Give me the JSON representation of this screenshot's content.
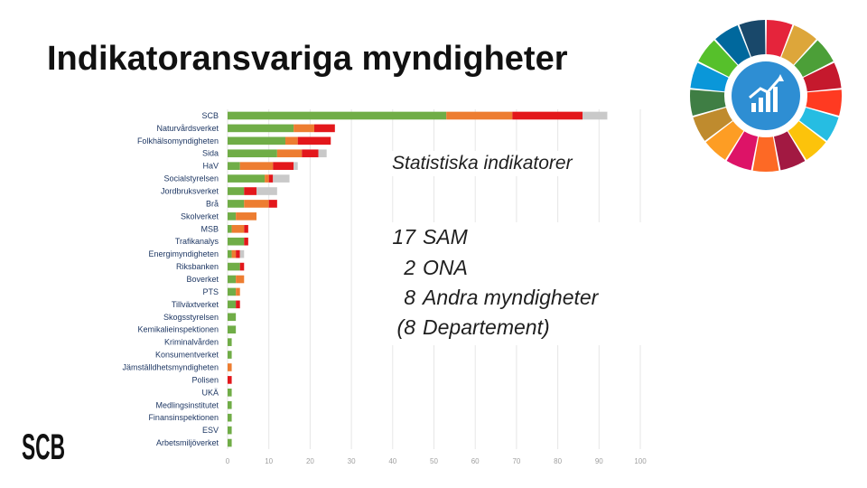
{
  "slide": {
    "title": "Indikatoransvariga myndigheter",
    "logo_text": "SCB"
  },
  "callout": {
    "title": "Statistiska indikatorer",
    "rows": [
      {
        "count": "17",
        "label": "SAM"
      },
      {
        "count": "2",
        "label": "ONA"
      },
      {
        "count": "8",
        "label": "Andra myndigheter"
      },
      {
        "count": "(8",
        "label": "Departement)"
      }
    ]
  },
  "sdg_wheel": {
    "icon": "growth-chart-icon",
    "colors": [
      "#e5243b",
      "#dda63a",
      "#4c9f38",
      "#c5192d",
      "#ff3a21",
      "#26bde2",
      "#fcc30b",
      "#a21942",
      "#fd6925",
      "#dd1367",
      "#fd9d24",
      "#bf8b2e",
      "#3f7e44",
      "#0a97d9",
      "#56c02b",
      "#00689d",
      "#19486a"
    ]
  },
  "colors": {
    "green": "#70ad47",
    "orange": "#ed7d31",
    "red": "#e3171b",
    "grey": "#c9c9c9",
    "axis_text": "#a0a0a0",
    "label_text": "#1f3864"
  },
  "chart_data": {
    "type": "bar",
    "orientation": "horizontal",
    "stacked": true,
    "categories": [
      "SCB",
      "Naturvårdsverket",
      "Folkhälsomyndigheten",
      "Sida",
      "HaV",
      "Socialstyrelsen",
      "Jordbruksverket",
      "Brå",
      "Skolverket",
      "MSB",
      "Trafikanalys",
      "Energimyndigheten",
      "Riksbanken",
      "Boverket",
      "PTS",
      "Tillväxtverket",
      "Skogsstyrelsen",
      "Kemikalieinspektionen",
      "Kriminalvården",
      "Konsumentverket",
      "Jämställdhetsmyndigheten",
      "Polisen",
      "UKÄ",
      "Medlingsinstitutet",
      "Finansinspektionen",
      "ESV",
      "Arbetsmiljöverket"
    ],
    "series": [
      {
        "color": "#70ad47",
        "values": [
          53,
          16,
          14,
          12,
          3,
          9,
          4,
          4,
          2,
          1,
          4,
          1,
          3,
          2,
          2,
          2,
          2,
          2,
          1,
          1,
          0,
          0,
          1,
          1,
          1,
          1,
          1
        ]
      },
      {
        "color": "#ed7d31",
        "values": [
          16,
          5,
          3,
          6,
          8,
          1,
          0,
          6,
          5,
          3,
          0,
          1,
          0,
          2,
          1,
          0,
          0,
          0,
          0,
          0,
          1,
          0,
          0,
          0,
          0,
          0,
          0
        ]
      },
      {
        "color": "#e3171b",
        "values": [
          17,
          5,
          8,
          4,
          5,
          1,
          3,
          2,
          0,
          1,
          1,
          1,
          1,
          0,
          0,
          1,
          0,
          0,
          0,
          0,
          0,
          1,
          0,
          0,
          0,
          0,
          0
        ]
      },
      {
        "color": "#c9c9c9",
        "values": [
          6,
          0,
          0,
          2,
          1,
          4,
          5,
          0,
          0,
          0,
          0,
          1,
          0,
          0,
          0,
          0,
          0,
          0,
          0,
          0,
          0,
          0,
          0,
          0,
          0,
          0,
          0
        ]
      }
    ],
    "xlim": [
      0,
      100
    ],
    "xticks": [
      0,
      10,
      20,
      30,
      40,
      50,
      60,
      70,
      80,
      90,
      100
    ],
    "grid": true,
    "legend": "none"
  }
}
